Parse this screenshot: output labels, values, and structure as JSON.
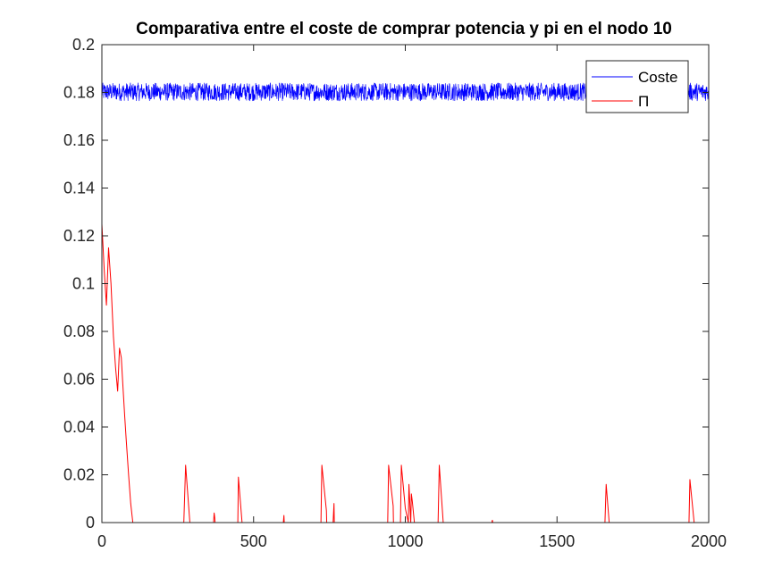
{
  "chart_data": {
    "type": "line",
    "title": "Comparativa entre el coste de comprar potencia y pi en el nodo 10",
    "xlabel": "",
    "ylabel": "",
    "xlim": [
      0,
      2000
    ],
    "ylim": [
      0,
      0.2
    ],
    "xticks": [
      0,
      500,
      1000,
      1500,
      2000
    ],
    "xtick_labels": [
      "0",
      "500",
      "1000",
      "1500",
      "2000"
    ],
    "yticks": [
      0,
      0.02,
      0.04,
      0.06,
      0.08,
      0.1,
      0.12,
      0.14,
      0.16,
      0.18,
      0.2
    ],
    "ytick_labels": [
      "0",
      "0.02",
      "0.04",
      "0.06",
      "0.08",
      "0.1",
      "0.12",
      "0.14",
      "0.16",
      "0.18",
      "0.2"
    ],
    "grid": false,
    "legend_position": "top-right",
    "series": [
      {
        "name": "Coste",
        "color": "#0000ff",
        "description_of_values": "noisy around 0.18",
        "mean": 0.1805,
        "band": [
          0.1765,
          0.184
        ],
        "n_points": 2000
      },
      {
        "name": "Π",
        "color": "#ff0000",
        "x": [
          0,
          8,
          15,
          22,
          30,
          38,
          45,
          52,
          58,
          64,
          68,
          75,
          80,
          88,
          95,
          102,
          110,
          270,
          276,
          290,
          291,
          368,
          370,
          372,
          373,
          448,
          450,
          462,
          463,
          598,
          600,
          601,
          722,
          725,
          740,
          741,
          762,
          765,
          766,
          942,
          945,
          960,
          961,
          984,
          987,
          1000,
          1010,
          1012,
          1018,
          1020,
          1023,
          1030,
          1031,
          1108,
          1112,
          1125,
          1126,
          1285,
          1287,
          1288,
          1658,
          1662,
          1672,
          1673,
          1935,
          1938,
          1952,
          1953,
          2000
        ],
        "y": [
          0.125,
          0.105,
          0.091,
          0.115,
          0.1,
          0.078,
          0.065,
          0.055,
          0.073,
          0.069,
          0.06,
          0.045,
          0.035,
          0.02,
          0.008,
          0.0,
          0.0,
          0.0,
          0.024,
          0.0,
          0.0,
          0.0,
          0.004,
          0.002,
          0.0,
          0.0,
          0.019,
          0.0,
          0.0,
          0.0,
          0.003,
          0.0,
          0.0,
          0.024,
          0.005,
          0.0,
          0.0,
          0.008,
          0.0,
          0.0,
          0.024,
          0.007,
          0.0,
          0.0,
          0.024,
          0.006,
          0.0,
          0.016,
          0.0,
          0.012,
          0.009,
          0.0,
          0.0,
          0.0,
          0.024,
          0.0,
          0.0,
          0.0,
          0.001,
          0.0,
          0.0,
          0.016,
          0.0,
          0.0,
          0.0,
          0.018,
          0.0,
          0.0,
          0.0
        ]
      }
    ]
  }
}
